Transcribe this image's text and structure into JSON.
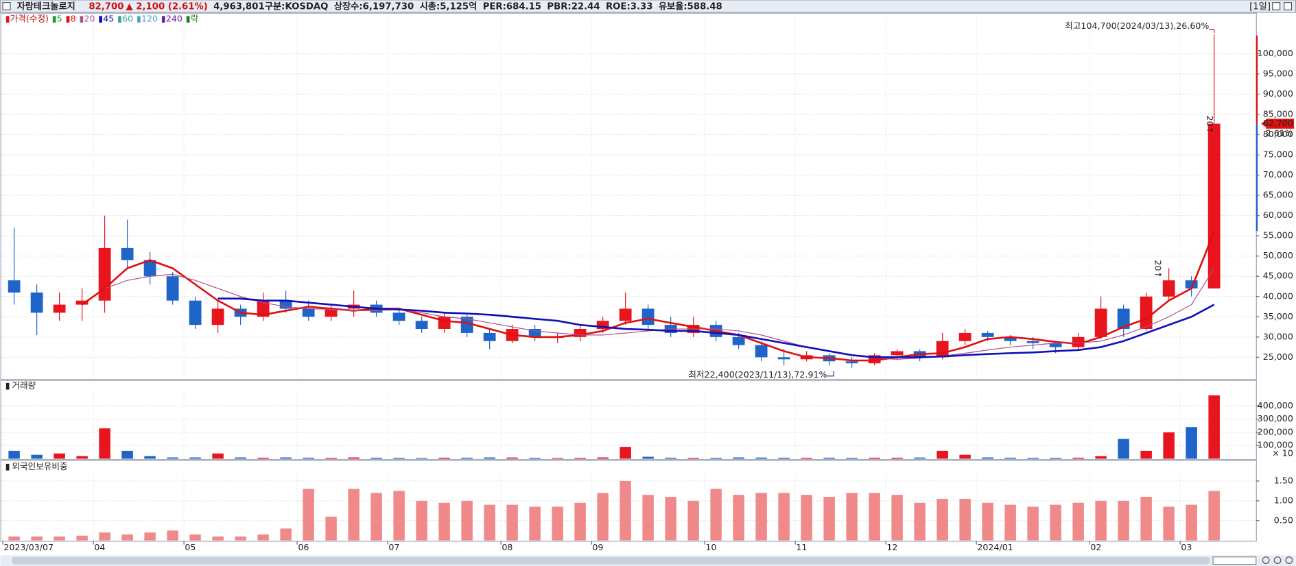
{
  "header": {
    "name": "자람테크놀로지",
    "price": "82,700",
    "change": "▲ 2,100 (2.61%)",
    "volume": "4,963,801",
    "items": [
      "구분:KOSDAQ",
      "상장수:6,197,730",
      "시총:5,125억",
      "PER:684.15",
      "PBR:22.44",
      "ROE:3.33",
      "유보율:588.48"
    ],
    "period": "[1일]"
  },
  "chart_data": [
    {
      "type": "candlestick",
      "title": "가격(수정)",
      "categories": [
        "2023/03/07",
        null,
        null,
        null,
        "04",
        null,
        null,
        null,
        "05",
        null,
        null,
        null,
        null,
        "06",
        null,
        null,
        null,
        "07",
        null,
        null,
        null,
        null,
        "08",
        null,
        null,
        null,
        "09",
        null,
        null,
        null,
        null,
        "10",
        null,
        null,
        null,
        "11",
        null,
        null,
        null,
        "12",
        null,
        null,
        null,
        "2024/01",
        null,
        null,
        null,
        null,
        "02",
        null,
        null,
        null,
        "03",
        null
      ],
      "open": [
        44000,
        41000,
        36000,
        38000,
        39000,
        52000,
        49000,
        45000,
        39000,
        33000,
        37000,
        35000,
        39000,
        37000,
        35000,
        37000,
        38000,
        36000,
        34000,
        32000,
        35000,
        31000,
        29000,
        32000,
        30000,
        30000,
        32000,
        34000,
        37000,
        33000,
        31000,
        33000,
        30000,
        28000,
        25000,
        24500,
        25500,
        24000,
        23500,
        25500,
        26500,
        25000,
        29000,
        31000,
        30000,
        29000,
        28500,
        27500,
        30000,
        37000,
        32000,
        40000,
        44000,
        42000
      ],
      "high": [
        57000,
        43000,
        41000,
        42000,
        60000,
        59000,
        51000,
        46000,
        40000,
        39000,
        38000,
        41000,
        41500,
        39000,
        38000,
        41500,
        39000,
        37000,
        35000,
        36000,
        35500,
        32000,
        33000,
        33000,
        31000,
        33000,
        35000,
        41000,
        38000,
        35000,
        35000,
        34000,
        31000,
        29000,
        27000,
        26500,
        26000,
        25000,
        26000,
        27000,
        27000,
        31000,
        32000,
        31500,
        30500,
        30000,
        29000,
        31000,
        40000,
        38000,
        41000,
        47000,
        45000,
        104700
      ],
      "low": [
        38000,
        30500,
        34000,
        34000,
        36000,
        47000,
        43000,
        38000,
        32000,
        31000,
        33000,
        34000,
        36000,
        34000,
        34000,
        35000,
        35000,
        33000,
        31000,
        31000,
        30000,
        27000,
        28500,
        29000,
        28500,
        29000,
        31000,
        33000,
        32000,
        30000,
        30000,
        29000,
        27000,
        24000,
        23000,
        24000,
        23000,
        22400,
        23000,
        24500,
        24000,
        24500,
        28000,
        29000,
        28000,
        27000,
        26000,
        27000,
        29500,
        30000,
        31500,
        39000,
        40000,
        42000
      ],
      "close": [
        41000,
        36000,
        38000,
        39000,
        52000,
        49000,
        45000,
        39000,
        33000,
        37000,
        35000,
        39000,
        37000,
        35000,
        37000,
        38000,
        36000,
        34000,
        32000,
        35000,
        31000,
        29000,
        32000,
        30000,
        30000,
        32000,
        34000,
        37000,
        33000,
        31000,
        33000,
        30000,
        28000,
        25000,
        24500,
        25500,
        24000,
        23500,
        25500,
        26500,
        25000,
        29000,
        31000,
        30000,
        29000,
        28500,
        27500,
        30000,
        37000,
        32000,
        40000,
        44000,
        42000,
        82700
      ],
      "up_color": "#e8141e",
      "down_color": "#1f64c8",
      "series": [
        {
          "name": "8",
          "color": "#e01010",
          "width": 2.2,
          "values": [
            null,
            null,
            null,
            38000,
            42000,
            47000,
            49000,
            47000,
            43000,
            39000,
            36000,
            35500,
            36500,
            37500,
            37000,
            36500,
            37000,
            37000,
            35500,
            34000,
            33500,
            32000,
            30500,
            30000,
            30000,
            30500,
            31500,
            33500,
            34500,
            33500,
            32500,
            31500,
            30500,
            28500,
            26500,
            25000,
            24800,
            24200,
            24200,
            25000,
            25800,
            26000,
            27500,
            29500,
            30000,
            29500,
            28800,
            28300,
            30000,
            32500,
            34500,
            39000,
            42000,
            56000
          ]
        },
        {
          "name": "20",
          "color": "#b0508c",
          "width": 1,
          "values": [
            null,
            null,
            null,
            null,
            42000,
            44000,
            45000,
            45500,
            44000,
            42000,
            40000,
            38500,
            37500,
            37000,
            36800,
            36500,
            36500,
            36800,
            36000,
            35000,
            34500,
            33500,
            32500,
            31500,
            31000,
            30500,
            30500,
            31000,
            31500,
            32000,
            32000,
            32000,
            31500,
            30500,
            29000,
            27500,
            26500,
            25500,
            24800,
            24500,
            24800,
            25300,
            26000,
            26800,
            27500,
            28000,
            28500,
            28500,
            29000,
            30500,
            32500,
            35000,
            38000,
            47000
          ]
        },
        {
          "name": "45",
          "color": "#1010b4",
          "width": 2.2,
          "values": [
            null,
            null,
            null,
            null,
            null,
            null,
            null,
            null,
            null,
            39500,
            39500,
            39000,
            39000,
            38500,
            38000,
            37500,
            37000,
            36800,
            36500,
            36000,
            35800,
            35500,
            35000,
            34500,
            34000,
            33000,
            32500,
            32000,
            31800,
            31500,
            31500,
            31000,
            30500,
            29500,
            28500,
            27500,
            26500,
            25500,
            25000,
            25000,
            25000,
            25200,
            25500,
            25800,
            26000,
            26200,
            26500,
            26800,
            27500,
            29000,
            31000,
            33000,
            35000,
            38000
          ]
        }
      ],
      "legend_extra": [
        {
          "name": "5",
          "color": "#20a020"
        },
        {
          "name": "60",
          "color": "#3aa0a0"
        },
        {
          "name": "120",
          "color": "#50a0c8"
        },
        {
          "name": "240",
          "color": "#6a1ea0"
        },
        {
          "name": "락",
          "color": "#208020"
        }
      ],
      "ylim": [
        19700,
        109800
      ],
      "yticks": [
        {
          "value": 25000,
          "label": "25,000"
        },
        {
          "value": 30000,
          "label": "30,000"
        },
        {
          "value": 35000,
          "label": "35,000"
        },
        {
          "value": 40000,
          "label": "40,000"
        },
        {
          "value": 45000,
          "label": "45,000"
        },
        {
          "value": 50000,
          "label": "50,000"
        },
        {
          "value": 55000,
          "label": "55,000"
        },
        {
          "value": 60000,
          "label": "60,000"
        },
        {
          "value": 65000,
          "label": "65,000"
        },
        {
          "value": 70000,
          "label": "70,000"
        },
        {
          "value": 75000,
          "label": "75,000"
        },
        {
          "value": 80000,
          "label": "80,000"
        },
        {
          "value": 85000,
          "label": "85,000"
        },
        {
          "value": 90000,
          "label": "90,000"
        },
        {
          "value": 95000,
          "label": "95,000"
        },
        {
          "value": 100000,
          "label": "100,000"
        }
      ],
      "high_label": "최고104,700(2024/03/13),26.60%",
      "low_label": "최저22,400(2023/11/13),72.91%",
      "last_price_label": "82,700",
      "last_change_label": "2.61%",
      "signals": [
        "20↑",
        "20↑"
      ]
    },
    {
      "type": "bar",
      "title": "거래량",
      "values": [
        60000,
        30000,
        40000,
        20000,
        230000,
        60000,
        20000,
        10000,
        10000,
        40000,
        10000,
        8000,
        10000,
        8000,
        7000,
        10000,
        8000,
        7000,
        6000,
        8000,
        8000,
        10000,
        9000,
        7000,
        6000,
        7000,
        10000,
        90000,
        15000,
        8000,
        7000,
        7000,
        10000,
        9000,
        8000,
        7000,
        8000,
        7000,
        8000,
        8000,
        9000,
        60000,
        30000,
        10000,
        8000,
        7000,
        7000,
        8000,
        20000,
        150000,
        60000,
        200000,
        240000,
        480000
      ],
      "ylim": [
        0,
        525000
      ],
      "yticks": [
        {
          "value": 100000,
          "label": "100,000"
        },
        {
          "value": 200000,
          "label": "200,000"
        },
        {
          "value": 300000,
          "label": "300,000"
        },
        {
          "value": 400000,
          "label": "400,000"
        }
      ],
      "unit_label": "× 10"
    },
    {
      "type": "bar",
      "title": "외국인보유비중",
      "color": "#f08a8a",
      "values": [
        0.1,
        0.1,
        0.1,
        0.12,
        0.2,
        0.15,
        0.2,
        0.25,
        0.15,
        0.1,
        0.1,
        0.15,
        0.3,
        1.3,
        0.6,
        1.3,
        1.2,
        1.25,
        1.0,
        0.95,
        1.0,
        0.9,
        0.9,
        0.85,
        0.85,
        0.95,
        1.2,
        1.5,
        1.15,
        1.1,
        1.0,
        1.3,
        1.15,
        1.2,
        1.2,
        1.15,
        1.1,
        1.2,
        1.2,
        1.15,
        0.95,
        1.05,
        1.05,
        0.95,
        0.9,
        0.85,
        0.9,
        0.95,
        1.0,
        1.0,
        1.1,
        0.85,
        0.9,
        1.25
      ],
      "ylim": [
        0,
        1.77
      ],
      "yticks": [
        {
          "value": 0.5,
          "label": "0.50"
        },
        {
          "value": 1,
          "label": "1.00"
        },
        {
          "value": 1.5,
          "label": "1.50"
        }
      ]
    }
  ]
}
